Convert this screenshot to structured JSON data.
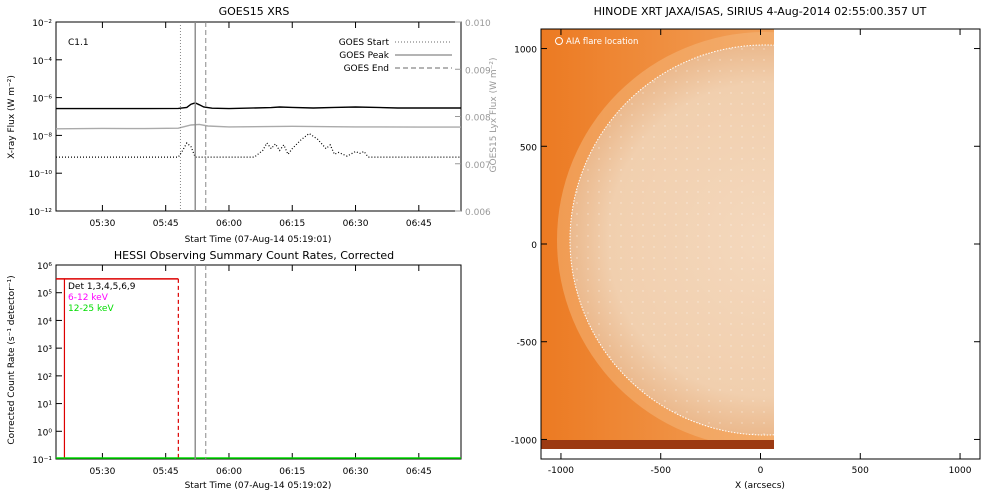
{
  "chart_data": [
    {
      "type": "line",
      "title": "GOES15 XRS",
      "xlabel": "Start Time (07-Aug-14 05:19:01)",
      "ylabel": "X-ray Flux (W m⁻²)",
      "y2label": "GOES15 Lyx Flux (W m⁻²)",
      "annotation": "C1.1",
      "x_ticks": [
        "05:30",
        "05:45",
        "06:00",
        "06:15",
        "06:30",
        "06:45"
      ],
      "x_tick_minutes": [
        30,
        45,
        60,
        75,
        90,
        105
      ],
      "xlim_minutes": [
        19,
        115
      ],
      "y_scale": "log",
      "ylim_exp": [
        -12,
        -2
      ],
      "y_tick_labels": [
        "10⁻¹²",
        "10⁻¹⁰",
        "10⁻⁸",
        "10⁻⁶",
        "10⁻⁴",
        "10⁻²"
      ],
      "y_tick_exp": [
        -12,
        -10,
        -8,
        -6,
        -4,
        -2
      ],
      "y2lim": [
        0.006,
        0.01
      ],
      "y2_ticks": [
        "0.006",
        "0.007",
        "0.008",
        "0.009",
        "0.010"
      ],
      "y2_tick_values": [
        0.006,
        0.007,
        0.008,
        0.009,
        0.01
      ],
      "legend": [
        {
          "label": "GOES Start",
          "style": "dotted"
        },
        {
          "label": "GOES Peak",
          "style": "solid"
        },
        {
          "label": "GOES End",
          "style": "dashed"
        }
      ],
      "event_lines_minutes": {
        "start": 48.5,
        "peak": 52,
        "end": 54.5
      },
      "series": [
        {
          "color": "#000000",
          "points": [
            [
              19,
              -6.58
            ],
            [
              30,
              -6.58
            ],
            [
              40,
              -6.58
            ],
            [
              48,
              -6.57
            ],
            [
              50,
              -6.52
            ],
            [
              51,
              -6.35
            ],
            [
              52,
              -6.28
            ],
            [
              53,
              -6.38
            ],
            [
              54,
              -6.5
            ],
            [
              56,
              -6.56
            ],
            [
              60,
              -6.58
            ],
            [
              70,
              -6.53
            ],
            [
              72,
              -6.5
            ],
            [
              75,
              -6.52
            ],
            [
              80,
              -6.55
            ],
            [
              85,
              -6.52
            ],
            [
              90,
              -6.5
            ],
            [
              95,
              -6.52
            ],
            [
              100,
              -6.55
            ],
            [
              110,
              -6.55
            ],
            [
              115,
              -6.55
            ]
          ]
        },
        {
          "color": "#aaaaaa",
          "points": [
            [
              19,
              -7.65
            ],
            [
              30,
              -7.63
            ],
            [
              40,
              -7.64
            ],
            [
              48,
              -7.62
            ],
            [
              51,
              -7.45
            ],
            [
              53,
              -7.42
            ],
            [
              55,
              -7.5
            ],
            [
              60,
              -7.55
            ],
            [
              75,
              -7.52
            ],
            [
              90,
              -7.55
            ],
            [
              105,
              -7.56
            ],
            [
              115,
              -7.56
            ]
          ]
        },
        {
          "color": "#000000",
          "style": "dotted",
          "points": [
            [
              19,
              -9.15
            ],
            [
              48,
              -9.15
            ],
            [
              49,
              -8.8
            ],
            [
              50,
              -8.4
            ],
            [
              51,
              -8.6
            ],
            [
              52,
              -9.15
            ],
            [
              66,
              -9.15
            ],
            [
              68,
              -8.8
            ],
            [
              69,
              -8.4
            ],
            [
              70,
              -8.7
            ],
            [
              71,
              -8.45
            ],
            [
              72,
              -8.8
            ],
            [
              73,
              -8.5
            ],
            [
              74,
              -9.0
            ],
            [
              75,
              -8.7
            ],
            [
              77,
              -8.25
            ],
            [
              79,
              -7.9
            ],
            [
              81,
              -8.2
            ],
            [
              83,
              -8.7
            ],
            [
              84,
              -8.5
            ],
            [
              85,
              -9.0
            ],
            [
              86,
              -8.9
            ],
            [
              88,
              -9.1
            ],
            [
              90,
              -8.85
            ],
            [
              91,
              -8.95
            ],
            [
              92,
              -8.85
            ],
            [
              93,
              -9.15
            ],
            [
              115,
              -9.15
            ]
          ]
        }
      ]
    },
    {
      "type": "line",
      "title": "HESSI Observing Summary Count Rates, Corrected",
      "xlabel": "Start Time (07-Aug-14 05:19:02)",
      "ylabel": "Corrected Count Rate (s⁻¹ detector⁻¹)",
      "x_ticks": [
        "05:30",
        "05:45",
        "06:00",
        "06:15",
        "06:30",
        "06:45"
      ],
      "x_tick_minutes": [
        30,
        45,
        60,
        75,
        90,
        105
      ],
      "xlim_minutes": [
        19,
        115
      ],
      "y_scale": "log",
      "ylim_exp": [
        -1,
        6
      ],
      "y_tick_labels": [
        "10⁻¹",
        "10⁰",
        "10¹",
        "10²",
        "10³",
        "10⁴",
        "10⁵",
        "10⁶"
      ],
      "y_tick_exp": [
        -1,
        0,
        1,
        2,
        3,
        4,
        5,
        6
      ],
      "legend": [
        {
          "label": "Det 1,3,4,5,6,9",
          "color": "#000000"
        },
        {
          "label": "6-12 keV",
          "color": "#ff00ff"
        },
        {
          "label": "12-25 keV",
          "color": "#00dd00"
        }
      ],
      "event_lines_minutes": {
        "start": 48.5,
        "peak": 52,
        "end": 54.5
      },
      "series": [
        {
          "color": "#dd0000",
          "points": [
            [
              19,
              5.5
            ],
            [
              21,
              5.5
            ],
            [
              21,
              5.5
            ],
            [
              48,
              5.5
            ],
            [
              48,
              5.2
            ]
          ]
        },
        {
          "color": "#00dd00",
          "points": [
            [
              19,
              -1
            ],
            [
              115,
              -1
            ]
          ]
        }
      ]
    },
    {
      "type": "image",
      "title": "HINODE XRT JAXA/ISAS, SIRIUS  4-Aug-2014 02:55:00.357 UT",
      "xlabel": "X (arcsecs)",
      "annotation": "AIA flare location",
      "x_ticks": [
        "-1000",
        "-500",
        "0",
        "500",
        "1000"
      ],
      "x_tick_values": [
        -1000,
        -500,
        0,
        500,
        1000
      ],
      "y_ticks": [
        "-1000",
        "-500",
        "0",
        "500",
        "1000"
      ],
      "y_tick_values": [
        -1000,
        -500,
        0,
        500,
        1000
      ],
      "xlim": [
        -1100,
        1100
      ],
      "ylim": [
        -1100,
        1100
      ],
      "image_extent_x": [
        -1070,
        60
      ],
      "image_extent_y": [
        -1050,
        1060
      ],
      "solar_radius_arcsec": 945
    }
  ]
}
